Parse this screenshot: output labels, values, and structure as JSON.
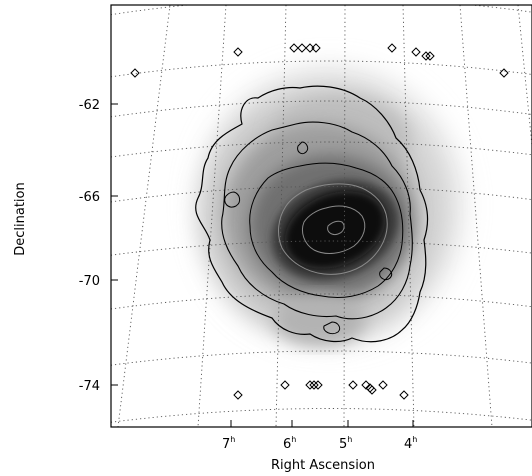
{
  "map": {
    "xlabel": "Right Ascension",
    "ylabel": "Declination",
    "y_ticks": [
      "-62",
      "-66",
      "-70",
      "-74"
    ],
    "x_ticks": [
      {
        "hour": "7",
        "unit": "h"
      },
      {
        "hour": "6",
        "unit": "h"
      },
      {
        "hour": "5",
        "unit": "h"
      },
      {
        "hour": "4",
        "unit": "h"
      }
    ],
    "contour_color": "#000000",
    "inner_contour_color": "#8a8a8a",
    "grid_color": "#555555",
    "marker_shape": "diamond"
  }
}
